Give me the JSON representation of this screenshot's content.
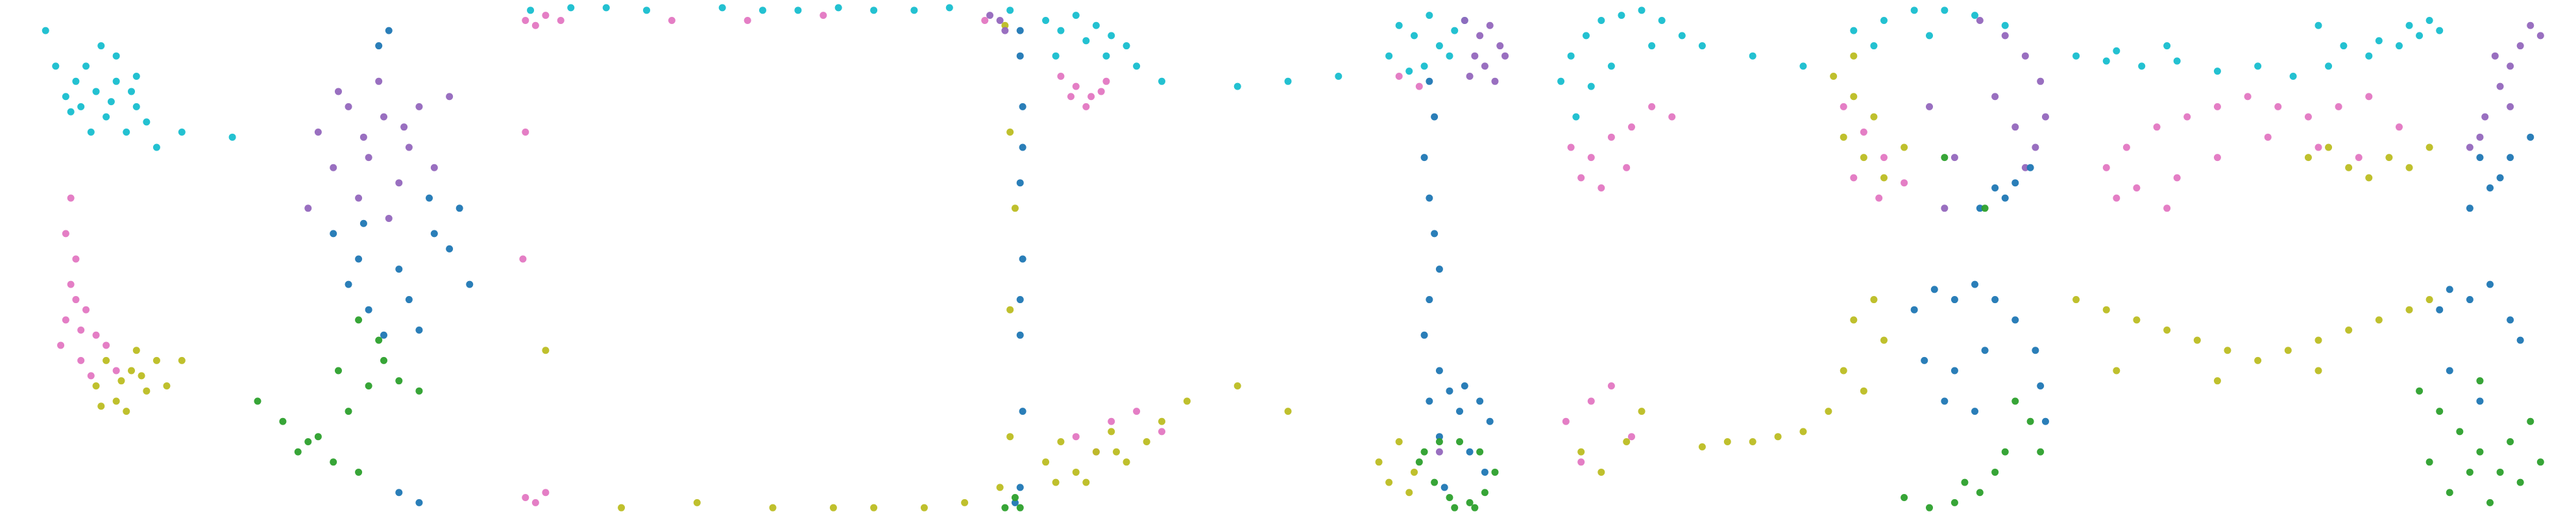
{
  "chart_data": [
    {
      "type": "scatter",
      "xlim": [
        0,
        100
      ],
      "ylim": [
        0,
        100
      ],
      "series": [
        {
          "color": "#17becf",
          "x": [
            10,
            14,
            18,
            22,
            26,
            20,
            15,
            24,
            28,
            12,
            30,
            19,
            22,
            35,
            45,
            8,
            26,
            17,
            16,
            21,
            25,
            13
          ],
          "y": [
            88,
            85,
            83,
            85,
            80,
            78,
            80,
            75,
            77,
            82,
            72,
            92,
            90,
            75,
            74,
            95,
            86,
            75,
            88,
            81,
            83,
            79
          ]
        },
        {
          "color": "#e377c2",
          "x": [
            12,
            14,
            13,
            16,
            12,
            18,
            15,
            20,
            14,
            22,
            17,
            11,
            13,
            15
          ],
          "y": [
            55,
            50,
            45,
            40,
            38,
            35,
            30,
            33,
            42,
            28,
            27,
            33,
            62,
            36
          ]
        },
        {
          "color": "#bcbd22",
          "x": [
            18,
            22,
            25,
            28,
            20,
            30,
            24,
            35,
            26,
            19,
            23,
            27,
            32
          ],
          "y": [
            25,
            22,
            28,
            24,
            30,
            30,
            20,
            30,
            32,
            21,
            26,
            27,
            25
          ]
        },
        {
          "color": "#9467bd",
          "x": [
            62,
            68,
            75,
            72,
            80,
            78,
            70,
            85,
            65,
            74,
            82,
            88,
            60,
            76,
            71,
            79,
            66
          ],
          "y": [
            75,
            80,
            78,
            70,
            72,
            65,
            62,
            68,
            68,
            85,
            80,
            82,
            60,
            58,
            74,
            76,
            83
          ]
        },
        {
          "color": "#1f77b4",
          "x": [
            65,
            70,
            78,
            85,
            90,
            72,
            80,
            92,
            68,
            75,
            82,
            74,
            76,
            78,
            82,
            88,
            84,
            71
          ],
          "y": [
            55,
            50,
            48,
            55,
            60,
            40,
            42,
            45,
            45,
            35,
            36,
            92,
            95,
            4,
            2,
            52,
            62,
            57
          ]
        },
        {
          "color": "#2ca02c",
          "x": [
            70,
            75,
            72,
            68,
            62,
            58,
            65,
            55,
            50,
            78,
            82,
            70,
            74,
            66,
            60
          ],
          "y": [
            38,
            30,
            25,
            20,
            15,
            12,
            10,
            18,
            22,
            26,
            24,
            8,
            34,
            28,
            14
          ]
        }
      ]
    },
    {
      "type": "scatter",
      "xlim": [
        0,
        100
      ],
      "ylim": [
        0,
        100
      ],
      "series": [
        {
          "color": "#17becf",
          "x": [
            2,
            10,
            25,
            40,
            55,
            70,
            85,
            97,
            17,
            48,
            63,
            78
          ],
          "y": [
            99,
            99.5,
            99,
            99.5,
            99,
            99,
            99.5,
            99,
            99.5,
            99,
            99.5,
            99
          ]
        },
        {
          "color": "#e377c2",
          "x": [
            1,
            3,
            5,
            30,
            60,
            92,
            1,
            3,
            5,
            0.5,
            8,
            45,
            1
          ],
          "y": [
            97,
            96,
            98,
            97,
            98,
            97,
            3,
            2,
            4,
            50,
            97,
            97,
            75
          ]
        },
        {
          "color": "#1f77b4",
          "x": [
            99,
            99.5,
            99,
            99.5,
            99,
            99.5,
            99,
            98,
            99,
            99.5,
            99
          ],
          "y": [
            95,
            80,
            65,
            50,
            35,
            20,
            5,
            2,
            90,
            72,
            42
          ]
        },
        {
          "color": "#bcbd22",
          "x": [
            98,
            97,
            97,
            95,
            96,
            50,
            20,
            35,
            70,
            80,
            5,
            97,
            88,
            62
          ],
          "y": [
            60,
            40,
            15,
            5,
            96,
            1,
            1,
            2,
            1,
            1,
            32,
            75,
            2,
            1
          ]
        },
        {
          "color": "#2ca02c",
          "x": [
            98,
            99,
            96
          ],
          "y": [
            3,
            1,
            1
          ]
        },
        {
          "color": "#9467bd",
          "x": [
            95,
            96,
            93
          ],
          "y": [
            97,
            95,
            98
          ]
        }
      ]
    },
    {
      "type": "scatter",
      "xlim": [
        0,
        100
      ],
      "ylim": [
        0,
        100
      ],
      "series": [
        {
          "color": "#17becf",
          "x": [
            2,
            5,
            8,
            12,
            15,
            18,
            4,
            10,
            14,
            20,
            25,
            72,
            75,
            78,
            80,
            83,
            70,
            77,
            85,
            82,
            74,
            40,
            50,
            60
          ],
          "y": [
            97,
            95,
            98,
            96,
            94,
            92,
            90,
            93,
            90,
            88,
            85,
            96,
            94,
            98,
            92,
            95,
            90,
            88,
            97,
            90,
            87,
            84,
            85,
            86
          ]
        },
        {
          "color": "#e377c2",
          "x": [
            5,
            8,
            11,
            14,
            7,
            10,
            13,
            72,
            76,
            8,
            12,
            15,
            20,
            25
          ],
          "y": [
            86,
            84,
            82,
            85,
            82,
            80,
            83,
            86,
            84,
            15,
            12,
            18,
            20,
            16
          ]
        },
        {
          "color": "#9467bd",
          "x": [
            85,
            88,
            90,
            92,
            87,
            89,
            93,
            86,
            91,
            80
          ],
          "y": [
            97,
            94,
            96,
            92,
            90,
            88,
            90,
            86,
            85,
            12
          ]
        },
        {
          "color": "#1f77b4",
          "x": [
            78,
            79,
            77,
            78,
            79,
            80,
            78,
            77,
            80,
            82,
            85,
            88,
            90,
            84,
            78,
            80,
            86,
            89,
            81
          ],
          "y": [
            85,
            78,
            70,
            62,
            55,
            48,
            42,
            35,
            28,
            24,
            25,
            22,
            18,
            20,
            22,
            15,
            12,
            8,
            5
          ]
        },
        {
          "color": "#2ca02c",
          "x": [
            76,
            79,
            82,
            86,
            89,
            91,
            88,
            84,
            80,
            77,
            83,
            87
          ],
          "y": [
            10,
            6,
            3,
            2,
            4,
            8,
            12,
            14,
            14,
            12,
            1,
            1
          ]
        },
        {
          "color": "#bcbd22",
          "x": [
            2,
            5,
            8,
            12,
            15,
            18,
            22,
            25,
            4,
            10,
            16,
            68,
            72,
            75,
            70,
            74,
            30,
            40,
            50
          ],
          "y": [
            10,
            14,
            8,
            12,
            16,
            10,
            14,
            18,
            6,
            6,
            12,
            10,
            14,
            8,
            6,
            4,
            22,
            25,
            20
          ]
        }
      ]
    },
    {
      "type": "scatter",
      "xlim": [
        0,
        100
      ],
      "ylim": [
        0,
        100
      ],
      "series": [
        {
          "color": "#17becf",
          "x": [
            2,
            4,
            7,
            10,
            14,
            18,
            22,
            26,
            5,
            12,
            20,
            8,
            60,
            66,
            72,
            78,
            84,
            90,
            64,
            75,
            30,
            40,
            50
          ],
          "y": [
            85,
            90,
            94,
            97,
            98,
            99,
            97,
            94,
            78,
            88,
            92,
            84,
            95,
            97,
            99,
            99,
            98,
            96,
            92,
            94,
            92,
            90,
            88
          ]
        },
        {
          "color": "#e377c2",
          "x": [
            4,
            8,
            12,
            16,
            20,
            24,
            6,
            10,
            15,
            58,
            62,
            66,
            60,
            65,
            70,
            3,
            8,
            12,
            16,
            6
          ],
          "y": [
            72,
            70,
            74,
            76,
            80,
            78,
            66,
            64,
            68,
            80,
            75,
            70,
            66,
            62,
            65,
            18,
            22,
            25,
            15,
            10
          ]
        },
        {
          "color": "#bcbd22",
          "x": [
            56,
            60,
            64,
            58,
            62,
            66,
            60,
            70,
            6,
            10,
            15,
            18,
            30,
            35,
            40,
            45,
            50,
            55,
            58,
            62,
            66,
            60,
            64
          ],
          "y": [
            86,
            82,
            78,
            74,
            70,
            66,
            90,
            72,
            12,
            8,
            14,
            20,
            13,
            14,
            14,
            15,
            16,
            20,
            28,
            24,
            34,
            38,
            42
          ]
        },
        {
          "color": "#9467bd",
          "x": [
            85,
            90,
            94,
            97,
            98,
            96,
            88,
            92,
            94,
            80,
            75,
            78
          ],
          "y": [
            97,
            94,
            90,
            85,
            78,
            72,
            82,
            76,
            68,
            70,
            80,
            60
          ]
        },
        {
          "color": "#1f77b4",
          "x": [
            92,
            95,
            90,
            85,
            88,
            72,
            76,
            80,
            84,
            88,
            92,
            96,
            97,
            98,
            74,
            80,
            86,
            78,
            84
          ],
          "y": [
            65,
            68,
            62,
            60,
            64,
            40,
            44,
            42,
            45,
            42,
            38,
            32,
            25,
            18,
            30,
            28,
            32,
            22,
            20
          ]
        },
        {
          "color": "#2ca02c",
          "x": [
            92,
            95,
            97,
            88,
            85,
            80,
            75,
            70,
            82,
            90,
            78,
            86
          ],
          "y": [
            22,
            18,
            12,
            8,
            4,
            2,
            1,
            3,
            6,
            12,
            70,
            60
          ]
        }
      ]
    },
    {
      "type": "scatter",
      "xlim": [
        0,
        100
      ],
      "ylim": [
        0,
        100
      ],
      "series": [
        {
          "color": "#17becf",
          "x": [
            2,
            8,
            15,
            22,
            30,
            38,
            45,
            52,
            60,
            66,
            70,
            74,
            50,
            55,
            62,
            68,
            72,
            10,
            20
          ],
          "y": [
            90,
            89,
            88,
            89,
            87,
            88,
            86,
            88,
            90,
            92,
            94,
            95,
            96,
            92,
            93,
            96,
            97,
            91,
            92
          ]
        },
        {
          "color": "#e377c2",
          "x": [
            8,
            12,
            18,
            24,
            30,
            36,
            42,
            48,
            54,
            60,
            66,
            14,
            22,
            30,
            40,
            50,
            58,
            10,
            20
          ],
          "y": [
            68,
            72,
            76,
            78,
            80,
            82,
            80,
            78,
            80,
            82,
            76,
            64,
            66,
            70,
            74,
            72,
            70,
            62,
            60
          ]
        },
        {
          "color": "#bcbd22",
          "x": [
            48,
            52,
            56,
            60,
            64,
            68,
            72,
            2,
            8,
            14,
            20,
            26,
            32,
            38,
            44,
            50,
            56,
            62,
            68,
            72,
            10,
            30,
            50
          ],
          "y": [
            70,
            72,
            68,
            66,
            70,
            68,
            72,
            42,
            40,
            38,
            36,
            34,
            32,
            30,
            32,
            34,
            36,
            38,
            40,
            42,
            28,
            26,
            28
          ]
        },
        {
          "color": "#9467bd",
          "x": [
            80,
            83,
            86,
            88,
            90,
            92,
            85,
            82,
            88,
            94
          ],
          "y": [
            72,
            78,
            84,
            88,
            92,
            96,
            90,
            74,
            80,
            94
          ]
        },
        {
          "color": "#1f77b4",
          "x": [
            80,
            84,
            88,
            92,
            82,
            86,
            74,
            76,
            80,
            84,
            88,
            90,
            76,
            82
          ],
          "y": [
            60,
            64,
            70,
            74,
            70,
            66,
            40,
            44,
            42,
            45,
            38,
            34,
            28,
            22
          ]
        },
        {
          "color": "#2ca02c",
          "x": [
            70,
            74,
            78,
            82,
            86,
            90,
            94,
            76,
            80,
            84,
            88,
            72,
            82,
            92
          ],
          "y": [
            24,
            20,
            16,
            12,
            8,
            6,
            10,
            4,
            8,
            2,
            14,
            10,
            26,
            18
          ]
        }
      ]
    }
  ]
}
